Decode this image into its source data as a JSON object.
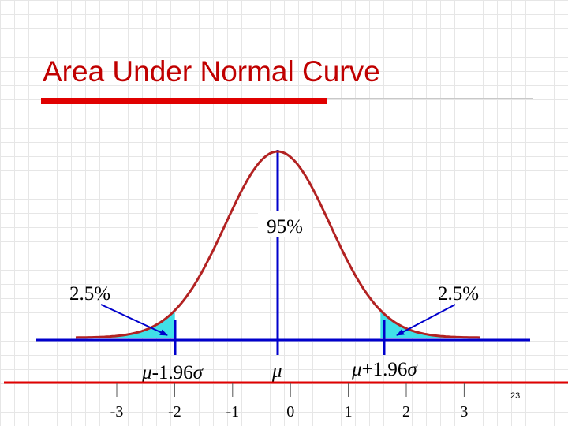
{
  "slide": {
    "title": "Area Under Normal Curve",
    "page_number": "23"
  },
  "figure": {
    "center_label": "95%",
    "left_tail_label": "2.5%",
    "right_tail_label": "2.5%",
    "critical_labels": {
      "left": {
        "symbol": "μ",
        "rest": "-1.96",
        "sigma": "σ"
      },
      "mean": {
        "symbol": "μ"
      },
      "right": {
        "symbol": "μ",
        "rest": "+1.96",
        "sigma": "σ"
      }
    },
    "axis_tick_labels": [
      "-3",
      "-2",
      "-1",
      "0",
      "1",
      "2",
      "3"
    ],
    "tail_z": 1.96,
    "colors": {
      "curve": "#b22222",
      "axis": "#0000cc",
      "shade": "#40e0e8",
      "bottom_axis": "#e00000",
      "title": "#c00000"
    }
  }
}
